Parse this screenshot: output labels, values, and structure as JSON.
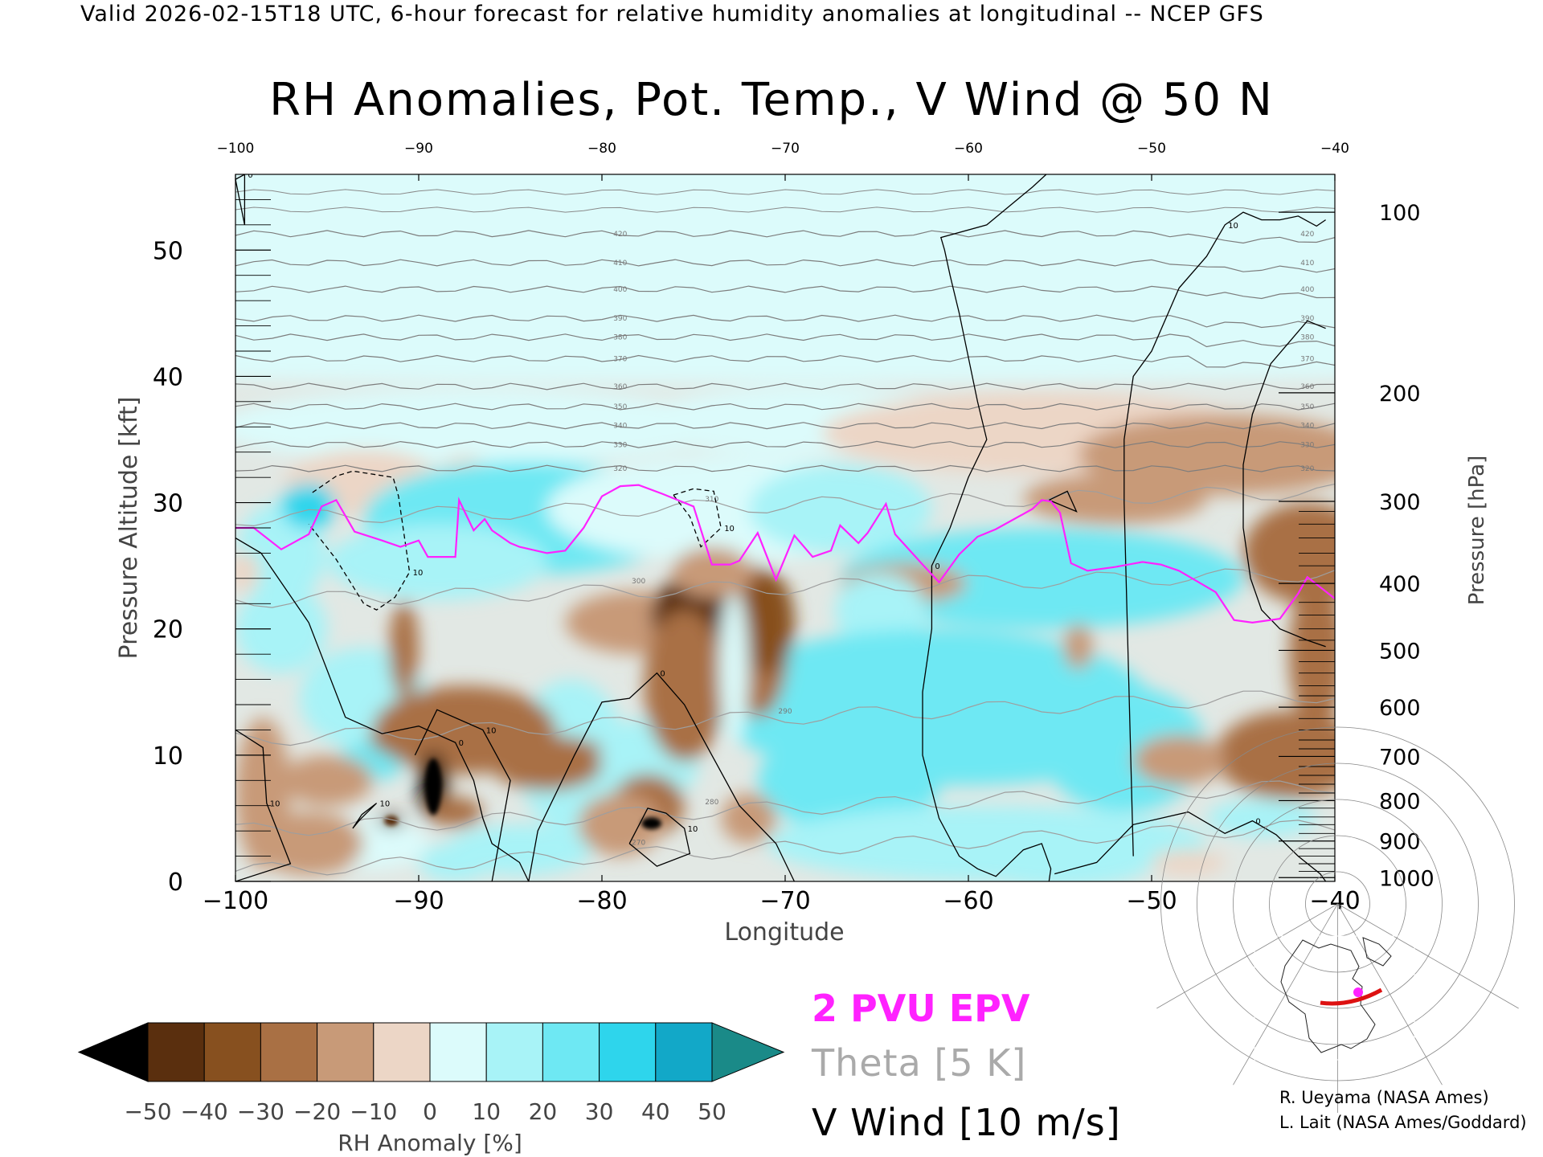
{
  "header": {
    "caption": "Valid 2026-02-15T18 UTC, 6-hour forecast for relative humidity anomalies at longitudinal -- NCEP GFS"
  },
  "chart_data": {
    "type": "heatmap",
    "title": "RH Anomalies, Pot. Temp., V Wind @ 50 N",
    "xlabel": "Longitude",
    "ylabel_left": "Pressure Altitude [kft]",
    "ylabel_right": "Pressure [hPa]",
    "xlim": [
      -100,
      -40
    ],
    "ylim": [
      0,
      56
    ],
    "x_ticks": [
      -100,
      -90,
      -80,
      -70,
      -60,
      -50,
      -40
    ],
    "x_tick_labels": [
      "−100",
      "−90",
      "−80",
      "−70",
      "−60",
      "−50",
      "−40"
    ],
    "top_tick_labels": [
      "−100",
      "−90",
      "−80",
      "−70",
      "−60",
      "−50",
      "−40"
    ],
    "y_ticks": [
      0,
      10,
      20,
      30,
      40,
      50
    ],
    "y_tick_labels": [
      "0",
      "10",
      "20",
      "30",
      "40",
      "50"
    ],
    "pressure_ticks": [
      {
        "kft": 53,
        "label": "100"
      },
      {
        "kft": 38.7,
        "label": "200"
      },
      {
        "kft": 30.1,
        "label": "300"
      },
      {
        "kft": 23.6,
        "label": "400"
      },
      {
        "kft": 18.3,
        "label": "500"
      },
      {
        "kft": 13.8,
        "label": "600"
      },
      {
        "kft": 9.9,
        "label": "700"
      },
      {
        "kft": 6.4,
        "label": "800"
      },
      {
        "kft": 3.2,
        "label": "900"
      },
      {
        "kft": 0.3,
        "label": "1000"
      }
    ],
    "colorbar": {
      "label": "RH Anomaly [%]",
      "min": -50,
      "max": 50,
      "step": 10,
      "tick_labels": [
        "−50",
        "−40",
        "−30",
        "−20",
        "−10",
        "0",
        "10",
        "20",
        "30",
        "40",
        "50"
      ],
      "colors": [
        "#2a1405",
        "#5a2f0e",
        "#87501f",
        "#a97044",
        "#c89a78",
        "#ecd6c6",
        "#dcfbfb",
        "#a8f3f7",
        "#6ee8f3",
        "#2ed5ec",
        "#12a8c8",
        "#0a6f85"
      ],
      "over_color": "#1a8a88",
      "under_color": "#000000"
    },
    "theta_contours": [
      {
        "level": 270,
        "kft": 2.6
      },
      {
        "level": 280,
        "kft": 5.8
      },
      {
        "level": 290,
        "kft": 13.0
      },
      {
        "level": 300,
        "kft": 23.3
      },
      {
        "level": 310,
        "kft": 29.8
      },
      {
        "level": 320,
        "kft": 32.7
      },
      {
        "level": 330,
        "kft": 34.6
      },
      {
        "level": 340,
        "kft": 36.1
      },
      {
        "level": 350,
        "kft": 37.6
      },
      {
        "level": 360,
        "kft": 39.2
      },
      {
        "level": 370,
        "kft": 41.4
      },
      {
        "level": 380,
        "kft": 43.1
      },
      {
        "level": 390,
        "kft": 44.6
      },
      {
        "level": 400,
        "kft": 46.9
      },
      {
        "level": 410,
        "kft": 49.0
      },
      {
        "level": 420,
        "kft": 51.3
      }
    ],
    "epv_2pvu": {
      "lon": [
        -100,
        -99,
        -97.5,
        -96,
        -95.3,
        -94.5,
        -93.5,
        -92,
        -91,
        -90,
        -89.5,
        -88,
        -87.8,
        -87,
        -86.4,
        -86,
        -85,
        -84.5,
        -83,
        -82,
        -81,
        -80,
        -79,
        -78,
        -76.7,
        -75,
        -74,
        -73,
        -72.5,
        -71.5,
        -70.5,
        -69.5,
        -68.5,
        -67.5,
        -67,
        -66,
        -65.5,
        -64.5,
        -64,
        -62.5,
        -61.6,
        -60.5,
        -59.5,
        -58.5,
        -57.5,
        -56.5,
        -56,
        -55.5,
        -55,
        -54.4,
        -53.5,
        -52,
        -50.5,
        -49.5,
        -48.5,
        -46.5,
        -45.5,
        -44.5,
        -43,
        -42,
        -41.5,
        -40
      ],
      "kft": [
        28,
        28,
        26.3,
        27.5,
        29.7,
        30.2,
        27.7,
        27,
        26.5,
        27,
        25.7,
        25.7,
        30.2,
        27.8,
        28.7,
        27.8,
        26.8,
        26.5,
        26,
        26.2,
        28,
        30.5,
        31.3,
        31.4,
        30.7,
        29.7,
        25.1,
        25.1,
        25.4,
        27.6,
        23.9,
        27.4,
        25.7,
        26.2,
        28.2,
        26.8,
        27.6,
        29.9,
        27.5,
        25.1,
        23.7,
        25.9,
        27.3,
        27.9,
        28.7,
        29.5,
        30.2,
        30.1,
        29.2,
        25.2,
        24.6,
        24.9,
        25.3,
        25.1,
        24.6,
        22.9,
        20.7,
        20.5,
        20.8,
        22.8,
        24.1,
        22.4
      ]
    },
    "vwind_contours": [
      {
        "label": "0",
        "lon": [
          -100,
          -98.6,
          -96,
          -94,
          -92,
          -90,
          -88,
          -87,
          -86.5,
          -86,
          -84.5,
          -84
        ],
        "kft": [
          27.2,
          26,
          20.5,
          13,
          11.7,
          12.3,
          11,
          8,
          5,
          3,
          1.5,
          0
        ]
      },
      {
        "label": "0",
        "lon": [
          -84,
          -83.5,
          -81.5,
          -80,
          -78.5,
          -77,
          -75.5,
          -74,
          -72.5,
          -70.5,
          -69.5
        ],
        "kft": [
          0,
          4,
          10,
          14.2,
          14.5,
          16.5,
          14,
          10,
          6,
          3,
          0
        ]
      },
      {
        "label": "0",
        "lon": [
          -54.5,
          -55,
          -56.5,
          -59,
          -61.5,
          -61.3,
          -61,
          -60.5,
          -59.5,
          -59,
          -60,
          -61,
          -62,
          -62,
          -62.5,
          -62.5,
          -61.6,
          -60.5,
          -59.5,
          -58.5,
          -57,
          -56,
          -55.5,
          -55.6,
          -55.3
        ],
        "kft": [
          59,
          57,
          55,
          52,
          51,
          50,
          48,
          45,
          38,
          35,
          32,
          28,
          25,
          20,
          15,
          10,
          5,
          2,
          1,
          0.4,
          2.5,
          3,
          1,
          0,
          -1
        ]
      },
      {
        "label": "0",
        "lon": [
          -55.3,
          -53,
          -51,
          -48,
          -46,
          -44.5,
          -43.2,
          -42,
          -40.8,
          -40.5
        ],
        "kft": [
          0.6,
          1.5,
          4.5,
          5.5,
          3.8,
          4.8,
          3.7,
          2,
          0.6,
          0
        ]
      },
      {
        "label": "10",
        "lon": [
          -51,
          -51.5,
          -51.5,
          -51,
          -50,
          -48.5,
          -47,
          -46,
          -45,
          -44,
          -43,
          -42,
          -41,
          -40.5
        ],
        "kft": [
          2,
          30,
          35,
          40,
          42,
          47,
          49.5,
          52,
          53,
          52.4,
          52.4,
          52.7,
          51.9,
          52.4
        ]
      },
      {
        "label": "",
        "lon": [
          -40.5,
          -41.5,
          -43.5,
          -44.5,
          -45,
          -45,
          -44.6,
          -44,
          -43,
          -41.5,
          -40.5
        ],
        "kft": [
          43.8,
          44.4,
          41,
          37,
          33,
          28,
          24,
          21.5,
          20,
          19.1,
          18.6
        ]
      },
      {
        "label": "10",
        "lon": [
          -100,
          -98.5,
          -98.3,
          -97,
          -100
        ],
        "kft": [
          12,
          10.6,
          6.2,
          1.4,
          0
        ]
      },
      {
        "label": "10",
        "lon": [
          -93.6,
          -93.2,
          -92.3,
          -93.1,
          -93.6
        ],
        "kft": [
          4.2,
          4.9,
          6.2,
          5.3,
          4.2
        ]
      },
      {
        "label": "10",
        "lon": [
          -90.2,
          -89,
          -86.5,
          -85,
          -86
        ],
        "kft": [
          10,
          13.6,
          12,
          8,
          0
        ]
      },
      {
        "label": "10",
        "lon": [
          -78.5,
          -77.5,
          -76.5,
          -75.5,
          -75.2,
          -77,
          -78.5
        ],
        "kft": [
          3,
          5.8,
          5.4,
          4.2,
          2.2,
          1.2,
          3
        ]
      },
      {
        "label": "0",
        "lon": [
          -100,
          -99.5,
          -99.5,
          -100
        ],
        "kft": [
          55.6,
          52,
          56,
          55.6
        ]
      },
      {
        "label": "",
        "lon": [
          -55.6,
          -54.6,
          -54.1,
          -55.6
        ],
        "kft": [
          30.2,
          30.9,
          29.3,
          30.2
        ]
      }
    ],
    "vwind_dashed": [
      {
        "label": "10",
        "lon": [
          -95.8,
          -94.5,
          -93.6,
          -91.4,
          -91.1,
          -90.5,
          -91.3,
          -92.3,
          -93,
          -94.5,
          -96
        ],
        "kft": [
          30.8,
          32.1,
          32.5,
          32,
          30.5,
          24.5,
          22.5,
          21.5,
          22,
          25.5,
          28.3
        ]
      },
      {
        "label": "10",
        "lon": [
          -76.1,
          -75,
          -73.9,
          -73.5,
          -74.6,
          -75.2,
          -76.1
        ],
        "kft": [
          30.6,
          31.1,
          30.9,
          28,
          26.5,
          28.9,
          30.6
        ]
      }
    ],
    "rh_blobs": [
      {
        "lon": -71.2,
        "kft": 50,
        "rx": 66,
        "ry": 10,
        "v": 1
      },
      {
        "lon": -73,
        "kft": 42.5,
        "rx": 66,
        "ry": 3,
        "v": 2
      },
      {
        "lon": -87,
        "kft": 36,
        "rx": 14,
        "ry": 3,
        "v": 6
      },
      {
        "lon": -69,
        "kft": 36.4,
        "rx": 9,
        "ry": 2.7,
        "v": 5
      },
      {
        "lon": -56,
        "kft": 35.5,
        "rx": 12,
        "ry": 3.2,
        "v": -5
      },
      {
        "lon": -46,
        "kft": 33.8,
        "rx": 8,
        "ry": 3.2,
        "v": -11
      },
      {
        "lon": -93,
        "kft": 31.6,
        "rx": 4.3,
        "ry": 2.6,
        "v": -9
      },
      {
        "lon": -87.5,
        "kft": 31.2,
        "rx": 1.8,
        "ry": 2.5,
        "v": -8
      },
      {
        "lon": -75.2,
        "kft": 30.2,
        "rx": 2.3,
        "ry": 2.4,
        "v": -5
      },
      {
        "lon": -52,
        "kft": 30.3,
        "rx": 5,
        "ry": 2,
        "v": -13
      },
      {
        "lon": -84,
        "kft": 28.8,
        "rx": 9,
        "ry": 4.5,
        "v": 20
      },
      {
        "lon": -73,
        "kft": 29.5,
        "rx": 10,
        "ry": 4.2,
        "v": 9
      },
      {
        "lon": -67,
        "kft": 29.5,
        "rx": 5,
        "ry": 3.5,
        "v": 14
      },
      {
        "lon": -97.5,
        "kft": 26,
        "rx": 2.4,
        "ry": 4,
        "v": 15
      },
      {
        "lon": -96,
        "kft": 29.7,
        "rx": 1.5,
        "ry": 1.8,
        "v": 34
      },
      {
        "lon": -89,
        "kft": 25.3,
        "rx": 6,
        "ry": 3,
        "v": 18
      },
      {
        "lon": -56,
        "kft": 24,
        "rx": 11,
        "ry": 4,
        "v": 20
      },
      {
        "lon": -63.5,
        "kft": 23.6,
        "rx": 3.4,
        "ry": 1.6,
        "v": -18
      },
      {
        "lon": -64.8,
        "kft": 21.4,
        "rx": 2.5,
        "ry": 3,
        "v": 12
      },
      {
        "lon": -99.5,
        "kft": 24.5,
        "rx": 0.8,
        "ry": 1.6,
        "v": -7
      },
      {
        "lon": -97.5,
        "kft": 20,
        "rx": 2.5,
        "ry": 3.5,
        "v": 18
      },
      {
        "lon": -93,
        "kft": 14.5,
        "rx": 3.5,
        "ry": 4,
        "v": 14
      },
      {
        "lon": -92.6,
        "kft": 9.5,
        "rx": 1.8,
        "ry": 1.5,
        "v": 25
      },
      {
        "lon": -62,
        "kft": 14,
        "rx": 12,
        "ry": 6,
        "v": 22
      },
      {
        "lon": -60.5,
        "kft": 9.6,
        "rx": 8,
        "ry": 2,
        "v": 29
      },
      {
        "lon": -51.5,
        "kft": 10.5,
        "rx": 4.5,
        "ry": 5,
        "v": 22
      },
      {
        "lon": -66.5,
        "kft": 8,
        "rx": 5,
        "ry": 4,
        "v": 20
      },
      {
        "lon": -81.7,
        "kft": 10,
        "rx": 3,
        "ry": 6,
        "v": 18
      },
      {
        "lon": -77.5,
        "kft": 9.5,
        "rx": 2.8,
        "ry": 3.4,
        "v": 13
      },
      {
        "lon": -59,
        "kft": 3,
        "rx": 12,
        "ry": 3,
        "v": 14
      },
      {
        "lon": -55,
        "kft": 1.5,
        "rx": 5,
        "ry": 2,
        "v": 12
      },
      {
        "lon": -44,
        "kft": 5,
        "rx": 3,
        "ry": 1.5,
        "v": 12
      },
      {
        "lon": -90.5,
        "kft": 11.4,
        "rx": 2.2,
        "ry": 1.5,
        "v": -25
      },
      {
        "lon": -92.5,
        "kft": 3,
        "rx": 3,
        "ry": 2,
        "v": 9
      },
      {
        "lon": -88,
        "kft": 1.5,
        "rx": 2,
        "ry": 1.5,
        "v": 10
      },
      {
        "lon": -84.5,
        "kft": 2.5,
        "rx": 4,
        "ry": 2,
        "v": 13
      },
      {
        "lon": -90.8,
        "kft": 18.4,
        "rx": 0.8,
        "ry": 3.8,
        "v": -22
      },
      {
        "lon": -78,
        "kft": 20.5,
        "rx": 4,
        "ry": 2.5,
        "v": -14
      },
      {
        "lon": -75,
        "kft": 21,
        "rx": 2.3,
        "ry": 3.3,
        "v": -42
      },
      {
        "lon": -75.5,
        "kft": 15.5,
        "rx": 2.2,
        "ry": 6,
        "v": -30
      },
      {
        "lon": -71.5,
        "kft": 19,
        "rx": 1.7,
        "ry": 6,
        "v": -30
      },
      {
        "lon": -71,
        "kft": 20.5,
        "rx": 1.5,
        "ry": 4,
        "v": -33
      },
      {
        "lon": -72.8,
        "kft": 17,
        "rx": 0.8,
        "ry": 6,
        "v": 8
      },
      {
        "lon": -74,
        "kft": 24.5,
        "rx": 2.2,
        "ry": 2,
        "v": -20
      },
      {
        "lon": -87.5,
        "kft": 12,
        "rx": 5,
        "ry": 3.5,
        "v": -22
      },
      {
        "lon": -86,
        "kft": 10.5,
        "rx": 6,
        "ry": 1.3,
        "v": -28
      },
      {
        "lon": -83,
        "kft": 9.2,
        "rx": 3,
        "ry": 2,
        "v": -24
      },
      {
        "lon": -89.2,
        "kft": 7.5,
        "rx": 0.8,
        "ry": 2.8,
        "v": -55
      },
      {
        "lon": -91.5,
        "kft": 4.8,
        "rx": 0.7,
        "ry": 0.5,
        "v": -50
      },
      {
        "lon": -88,
        "kft": 5.5,
        "rx": 1.5,
        "ry": 1.2,
        "v": -30
      },
      {
        "lon": -77.3,
        "kft": 4.6,
        "rx": 1,
        "ry": 0.6,
        "v": -52
      },
      {
        "lon": -77.5,
        "kft": 6,
        "rx": 2,
        "ry": 2.5,
        "v": -22
      },
      {
        "lon": -79,
        "kft": 4.5,
        "rx": 2.3,
        "ry": 2.5,
        "v": -14
      },
      {
        "lon": -72,
        "kft": 5,
        "rx": 1.5,
        "ry": 2,
        "v": -15
      },
      {
        "lon": -98.5,
        "kft": 7,
        "rx": 1.5,
        "ry": 6,
        "v": -20
      },
      {
        "lon": -96,
        "kft": 3,
        "rx": 3,
        "ry": 2.5,
        "v": -15
      },
      {
        "lon": -95,
        "kft": 8,
        "rx": 2.5,
        "ry": 2,
        "v": -12
      },
      {
        "lon": -42.5,
        "kft": 10,
        "rx": 4,
        "ry": 3.5,
        "v": -26
      },
      {
        "lon": -41,
        "kft": 18,
        "rx": 1.5,
        "ry": 6,
        "v": -26
      },
      {
        "lon": -41.5,
        "kft": 26,
        "rx": 3.5,
        "ry": 4,
        "v": -28
      },
      {
        "lon": -48.5,
        "kft": 9.6,
        "rx": 2.5,
        "ry": 2,
        "v": -12
      },
      {
        "lon": -54,
        "kft": 18.6,
        "rx": 0.8,
        "ry": 1.8,
        "v": -13
      },
      {
        "lon": -48,
        "kft": 1.5,
        "rx": 2,
        "ry": 1,
        "v": -6
      }
    ]
  },
  "legend": {
    "epv": "2 PVU EPV",
    "theta": "Theta [5 K]",
    "vwind": "V Wind [10 m/s]"
  },
  "inset_map": {
    "description_icon": "globe-map-icon",
    "track_color": "#dd1111",
    "marker_color": "#ff22ff"
  },
  "credits": {
    "line1": "R. Ueyama (NASA Ames)",
    "line2": "L. Lait (NASA Ames/Goddard)"
  }
}
